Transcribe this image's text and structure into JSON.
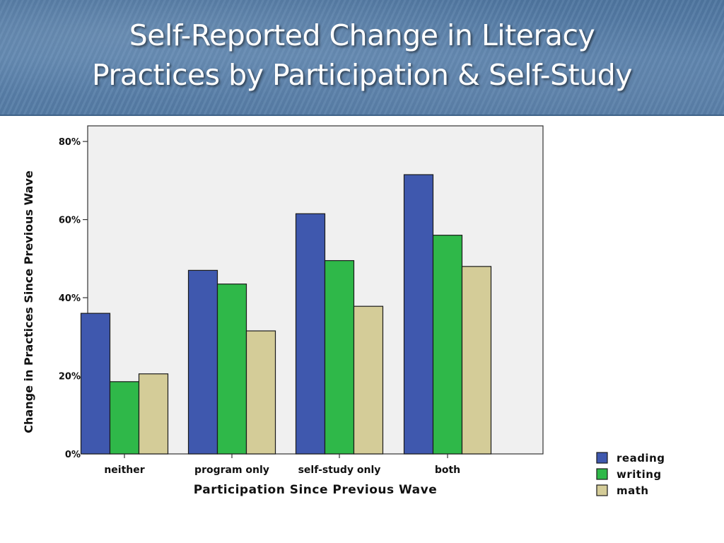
{
  "slide": {
    "title_line1": "Self-Reported Change in Literacy",
    "title_line2": "Practices by Participation & Self-Study"
  },
  "chart_data": {
    "type": "bar",
    "xlabel": "Participation Since Previous Wave",
    "ylabel": "Change in Practices Since Previous Wave",
    "categories": [
      "neither",
      "program only",
      "self-study only",
      "both"
    ],
    "series": [
      {
        "name": "reading",
        "color": "#3f58ae",
        "values": [
          36,
          47,
          61.5,
          71.5
        ]
      },
      {
        "name": "writing",
        "color": "#2fb849",
        "values": [
          18.5,
          43.5,
          49.5,
          56
        ]
      },
      {
        "name": "math",
        "color": "#d4cc98",
        "values": [
          20.5,
          31.5,
          37.8,
          48
        ]
      }
    ],
    "yticks": [
      {
        "value": 0,
        "label": "0%"
      },
      {
        "value": 20,
        "label": "20%"
      },
      {
        "value": 40,
        "label": "40%"
      },
      {
        "value": 60,
        "label": "60%"
      },
      {
        "value": 80,
        "label": "80%"
      }
    ],
    "ylim": [
      0,
      84
    ],
    "grid": false,
    "legend_position": "bottom-right",
    "plot_background": "#f0f0f0"
  }
}
